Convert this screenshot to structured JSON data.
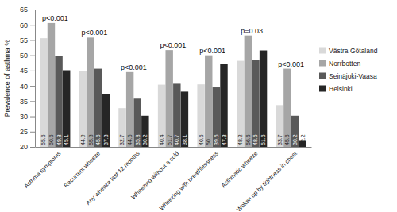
{
  "chart_data": {
    "type": "bar",
    "y_label": "Prevalence of asthma %",
    "categories": [
      "Asthma symptoms",
      "Recurrent wheeze",
      "Any wheeze last 12 months",
      "Wheezing without a cold",
      "Wheezing with breathlessness",
      "Asthmatic wheeze",
      "Woken up by tightness in chest"
    ],
    "annotations": [
      "p<0.001",
      "p<0.001",
      "p<0.001",
      "p<0.001",
      "p<0.001",
      "p=0.03",
      "p<0.001"
    ],
    "series": [
      {
        "name": "Västra Götaland",
        "color": "#d9d9d9",
        "values": [
          55.6,
          44.9,
          32.7,
          40.4,
          40.5,
          48.2,
          33.7
        ]
      },
      {
        "name": "Norrbotten",
        "color": "#a6a6a6",
        "values": [
          60.6,
          55.8,
          44.5,
          51.7,
          50,
          56.5,
          45.6
        ]
      },
      {
        "name": "Seinäjoki-Vaasa",
        "color": "#595959",
        "values": [
          49.8,
          45.6,
          35.8,
          40.7,
          39.5,
          48.5,
          30.2
        ]
      },
      {
        "name": "Helsinki",
        "color": "#262626",
        "values": [
          45.1,
          37.3,
          30.2,
          38.1,
          47.3,
          51.6,
          22.2
        ]
      }
    ],
    "ylim": [
      20,
      65
    ],
    "yticks": [
      20,
      25,
      30,
      35,
      40,
      45,
      50,
      55,
      60,
      65
    ],
    "grid": false,
    "legend": "right",
    "data_labels": true
  }
}
